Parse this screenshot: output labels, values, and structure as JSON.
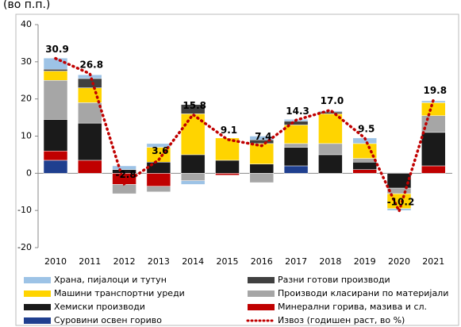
{
  "chart_data": {
    "type": "bar",
    "subtitle": "(во п.п.)",
    "categories": [
      "2010",
      "2011",
      "2012",
      "2013",
      "2014",
      "2015",
      "2016",
      "2017",
      "2018",
      "2019",
      "2020",
      "2021"
    ],
    "series": [
      {
        "name": "Суровини освен гориво",
        "color": "#1f3f8f",
        "values": [
          3.5,
          0,
          0,
          0,
          0,
          0,
          0,
          2,
          0,
          0,
          0,
          0
        ]
      },
      {
        "name": "Минерални горива, мазива и сл.",
        "color": "#c00000",
        "values": [
          2.5,
          3.5,
          -3,
          -3.5,
          0,
          -0.5,
          0,
          0,
          0,
          1,
          0,
          2
        ]
      },
      {
        "name": "Хемиски производи",
        "color": "#1a1a1a",
        "values": [
          8.5,
          10,
          1,
          3,
          5,
          3.5,
          2.5,
          5,
          5,
          2,
          -4,
          9
        ]
      },
      {
        "name": "Производи класирани по материјали",
        "color": "#a6a6a6",
        "values": [
          10.5,
          5.5,
          -2.5,
          -1.5,
          -2,
          0,
          -2.5,
          1,
          3,
          1,
          -1.5,
          4.5
        ]
      },
      {
        "name": "Машини  транспортни уреди",
        "color": "#ffd400",
        "values": [
          2.5,
          4,
          0,
          4,
          11,
          6,
          5.5,
          5,
          8,
          4,
          -4,
          3.5
        ]
      },
      {
        "name": "Разни готови производи",
        "color": "#404040",
        "values": [
          0.5,
          2.5,
          0,
          0,
          2.5,
          0,
          1,
          1,
          0.5,
          0,
          0,
          0
        ]
      },
      {
        "name": "Храна, пијалоци и тутун",
        "color": "#9dc3e6",
        "values": [
          3,
          1,
          1,
          1,
          -1,
          0,
          1,
          0.5,
          0.3,
          1.5,
          -0.5,
          0.5
        ]
      },
      {
        "name": "Извоз (годишен раст, во %)",
        "color": "#c00000",
        "type": "line",
        "values": [
          30.9,
          26.8,
          -2.8,
          3.6,
          15.8,
          9.1,
          7.4,
          14.3,
          17.0,
          9.5,
          -10.2,
          19.8
        ],
        "value_labels": [
          "30.9",
          "26.8",
          "-2.8",
          "3.6",
          "15.8",
          "9.1",
          "7.4",
          "14.3",
          "17.0",
          "9.5",
          "-10.2",
          "19.8"
        ]
      }
    ],
    "ylim": [
      -20,
      40
    ],
    "yticks": [
      -20,
      -10,
      0,
      10,
      20,
      30,
      40
    ]
  }
}
